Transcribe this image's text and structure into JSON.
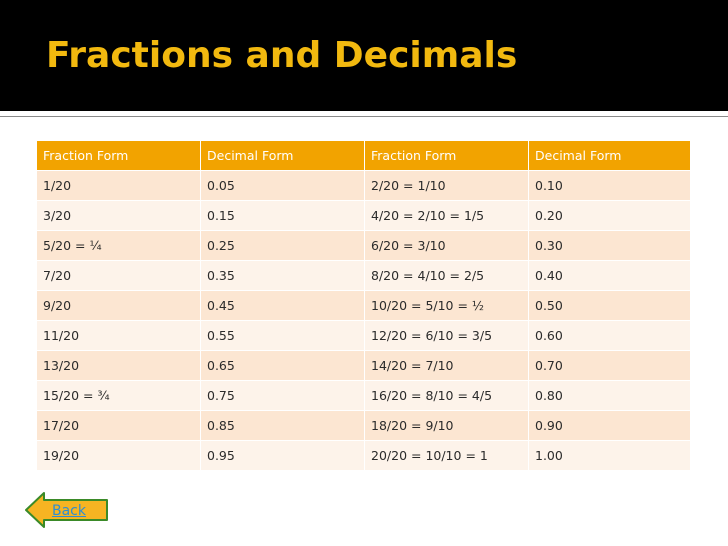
{
  "title": "Fractions and Decimals",
  "table": {
    "headers": [
      "Fraction Form",
      "Decimal Form",
      "Fraction Form",
      "Decimal Form"
    ],
    "rows": [
      [
        "1/20",
        "0.05",
        "2/20 = 1/10",
        "0.10"
      ],
      [
        "3/20",
        "0.15",
        "4/20 = 2/10 = 1/5",
        "0.20"
      ],
      [
        "5/20 = ¼",
        "0.25",
        "6/20 = 3/10",
        "0.30"
      ],
      [
        "7/20",
        "0.35",
        "8/20 = 4/10 = 2/5",
        "0.40"
      ],
      [
        "9/20",
        "0.45",
        "10/20 = 5/10 = ½",
        "0.50"
      ],
      [
        "11/20",
        "0.55",
        "12/20 = 6/10 = 3/5",
        "0.60"
      ],
      [
        "13/20",
        "0.65",
        "14/20 = 7/10",
        "0.70"
      ],
      [
        "15/20 = ¾",
        "0.75",
        "16/20 = 8/10 = 4/5",
        "0.80"
      ],
      [
        "17/20",
        "0.85",
        "18/20 = 9/10",
        "0.90"
      ],
      [
        "19/20",
        "0.95",
        "20/20 = 10/10 = 1",
        "1.00"
      ]
    ]
  },
  "back_button": {
    "label": "Back",
    "icon": "arrow-left-icon"
  },
  "colors": {
    "title": "#f2b90f",
    "header_bg": "#f2a300",
    "row_bg": "#fce6d2",
    "row_alt_bg": "#fdf3ea",
    "button_fill": "#f6b422",
    "button_stroke": "#3a8a28"
  }
}
